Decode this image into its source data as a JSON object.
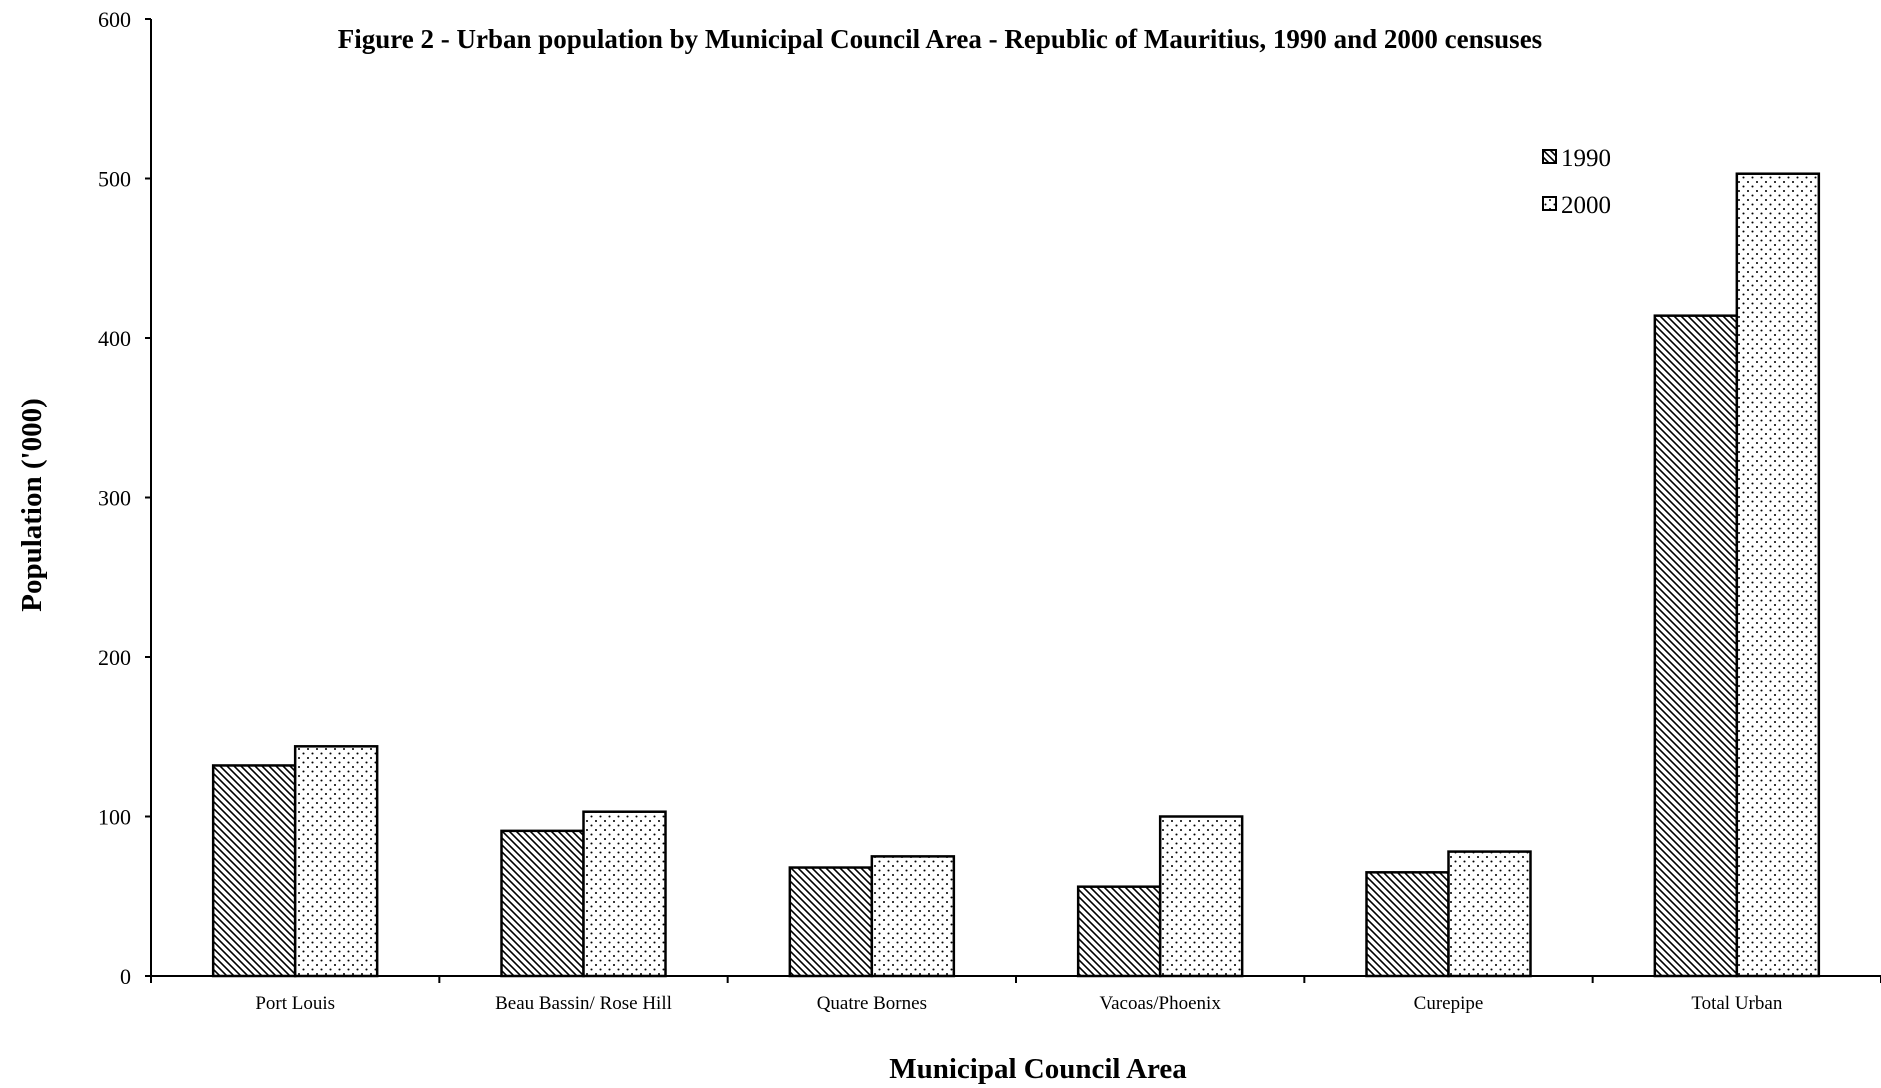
{
  "chart_data": {
    "type": "bar",
    "title": "Figure 2 - Urban population by Municipal Council Area - Republic of Mauritius, 1990 and 2000 censuses",
    "xlabel": "Municipal Council Area",
    "ylabel": "Population ('000)",
    "categories": [
      "Port Louis",
      "Beau Bassin/ Rose Hill",
      "Quatre Bornes",
      "Vacoas/Phoenix",
      "Curepipe",
      "Total Urban"
    ],
    "series": [
      {
        "name": "1990",
        "pattern": "diagonal-hatch",
        "values": [
          132,
          91,
          68,
          56,
          65,
          414
        ]
      },
      {
        "name": "2000",
        "pattern": "dotted",
        "values": [
          144,
          103,
          75,
          100,
          78,
          503
        ]
      }
    ],
    "ylim": [
      0,
      600
    ],
    "yticks": [
      0,
      100,
      200,
      300,
      400,
      500,
      600
    ],
    "grid": false,
    "legend_position": "top-right",
    "colors": {
      "bar_outline": "#000000",
      "pattern_ink": "#000000",
      "background": "#ffffff"
    }
  }
}
